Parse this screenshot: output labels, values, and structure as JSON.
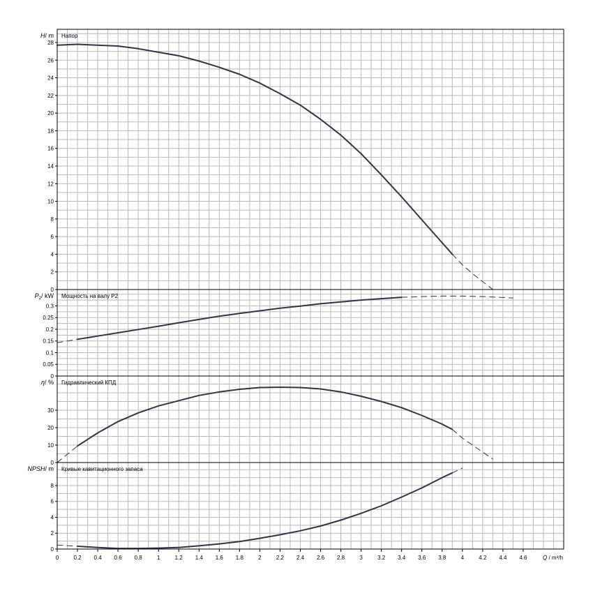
{
  "chart_data": [
    {
      "type": "line",
      "panel": "head",
      "panel_label": "Напор",
      "y_axis_symbol": "H",
      "y_axis_unit": "m",
      "ylim": [
        0,
        29.5
      ],
      "ticks": [
        "0",
        "2",
        "4",
        "6",
        "8",
        "10",
        "12",
        "14",
        "16",
        "18",
        "20",
        "22",
        "24",
        "26",
        "28"
      ],
      "tick_values": [
        0,
        2,
        4,
        6,
        8,
        10,
        12,
        14,
        16,
        18,
        20,
        22,
        24,
        26,
        28
      ],
      "series": [
        {
          "style": "solid",
          "x": [
            0,
            0.2,
            0.4,
            0.6,
            0.8,
            1.0,
            1.2,
            1.4,
            1.6,
            1.8,
            2.0,
            2.2,
            2.4,
            2.6,
            2.8,
            3.0,
            3.2,
            3.4,
            3.6,
            3.8,
            3.9
          ],
          "y": [
            27.7,
            27.8,
            27.7,
            27.6,
            27.3,
            26.9,
            26.5,
            25.9,
            25.2,
            24.4,
            23.4,
            22.2,
            20.9,
            19.3,
            17.5,
            15.4,
            13.0,
            10.5,
            7.9,
            5.3,
            4.0
          ]
        },
        {
          "style": "dashed",
          "x": [
            3.9,
            4.0,
            4.1,
            4.2,
            4.3
          ],
          "y": [
            4.0,
            2.8,
            1.8,
            0.9,
            0.0
          ]
        }
      ]
    },
    {
      "type": "line",
      "panel": "power",
      "panel_label": "Мощность на валу P2",
      "y_axis_symbol": "P",
      "y_axis_subscript": "2",
      "y_axis_unit": "kW",
      "ylim": [
        0,
        0.37
      ],
      "ticks": [
        "0",
        "0.05",
        "0.1",
        "0.15",
        "0.2",
        "0.25",
        "0.3"
      ],
      "tick_values": [
        0,
        0.05,
        0.1,
        0.15,
        0.2,
        0.25,
        0.3
      ],
      "series": [
        {
          "style": "solid",
          "x": [
            0.2,
            0.4,
            0.6,
            0.8,
            1.0,
            1.2,
            1.4,
            1.6,
            1.8,
            2.0,
            2.2,
            2.4,
            2.6,
            2.8,
            3.0,
            3.2,
            3.4
          ],
          "y": [
            0.157,
            0.171,
            0.185,
            0.199,
            0.213,
            0.228,
            0.242,
            0.256,
            0.268,
            0.279,
            0.29,
            0.299,
            0.309,
            0.317,
            0.325,
            0.331,
            0.337
          ]
        },
        {
          "style": "dashed",
          "x": [
            0,
            0.2
          ],
          "y": [
            0.143,
            0.157
          ]
        },
        {
          "style": "dashed",
          "x": [
            3.4,
            3.6,
            3.8,
            4.0,
            4.2,
            4.4,
            4.5
          ],
          "y": [
            0.337,
            0.34,
            0.342,
            0.342,
            0.34,
            0.336,
            0.334
          ]
        }
      ]
    },
    {
      "type": "line",
      "panel": "efficiency",
      "panel_label": "Гидравлический КПД",
      "y_axis_symbol": "η",
      "y_axis_unit": "%",
      "ylim": [
        0,
        49.6
      ],
      "ticks": [
        "0",
        "10",
        "20",
        "30"
      ],
      "tick_values": [
        0,
        10,
        20,
        30
      ],
      "series": [
        {
          "style": "solid",
          "x": [
            0.2,
            0.4,
            0.6,
            0.8,
            1.0,
            1.2,
            1.4,
            1.6,
            1.8,
            2.0,
            2.2,
            2.4,
            2.6,
            2.8,
            3.0,
            3.2,
            3.4,
            3.6,
            3.8,
            3.9
          ],
          "y": [
            9.5,
            17,
            23.5,
            28.5,
            32.5,
            35.5,
            38.5,
            40.5,
            42.0,
            43.0,
            43.2,
            43.0,
            42.2,
            40.5,
            38.0,
            35.0,
            31.5,
            27,
            22,
            19
          ]
        },
        {
          "style": "dashed",
          "x": [
            0,
            0.2
          ],
          "y": [
            0,
            9.5
          ]
        },
        {
          "style": "dashed",
          "x": [
            3.9,
            4.0,
            4.1,
            4.2,
            4.3
          ],
          "y": [
            19,
            14,
            10,
            6,
            2
          ]
        }
      ]
    },
    {
      "type": "line",
      "panel": "npsh",
      "panel_label": "Кривые кавитационного запаса",
      "y_axis_symbol": "NPSH",
      "y_axis_unit": "m",
      "ylim": [
        0,
        10.9
      ],
      "ticks": [
        "0",
        "2",
        "4",
        "6",
        "8"
      ],
      "tick_values": [
        0,
        2,
        4,
        6,
        8
      ],
      "series": [
        {
          "style": "solid",
          "x": [
            0.2,
            0.4,
            0.6,
            0.8,
            1.0,
            1.2,
            1.4,
            1.6,
            1.8,
            2.0,
            2.2,
            2.4,
            2.6,
            2.8,
            3.0,
            3.2,
            3.4,
            3.6,
            3.8,
            3.9
          ],
          "y": [
            0.35,
            0.2,
            0.08,
            0.08,
            0.12,
            0.2,
            0.4,
            0.65,
            0.95,
            1.35,
            1.8,
            2.3,
            2.9,
            3.65,
            4.5,
            5.45,
            6.55,
            7.7,
            9.0,
            9.6
          ]
        },
        {
          "style": "dashed",
          "x": [
            0,
            0.2
          ],
          "y": [
            0.5,
            0.35
          ]
        },
        {
          "style": "dashed",
          "x": [
            3.9,
            4.0
          ],
          "y": [
            9.6,
            10.2
          ]
        }
      ]
    }
  ],
  "x_axis": {
    "symbol": "Q",
    "unit": "m³/h",
    "xlim": [
      0,
      5.0
    ],
    "ticks": [
      "0",
      "0.2",
      "0.4",
      "0.6",
      "0.8",
      "1",
      "1.2",
      "1.4",
      "1.6",
      "1.8",
      "2",
      "2.2",
      "2.4",
      "2.6",
      "2.8",
      "3",
      "3.2",
      "3.4",
      "3.6",
      "3.8",
      "4",
      "4.2",
      "4.4",
      "4.6"
    ],
    "tick_values": [
      0,
      0.2,
      0.4,
      0.6,
      0.8,
      1.0,
      1.2,
      1.4,
      1.6,
      1.8,
      2.0,
      2.2,
      2.4,
      2.6,
      2.8,
      3.0,
      3.2,
      3.4,
      3.6,
      3.8,
      4.0,
      4.2,
      4.4,
      4.6
    ]
  },
  "colors": {
    "curve": "#2f3447",
    "grid": "#b8b8b8",
    "frame": "#000000"
  }
}
